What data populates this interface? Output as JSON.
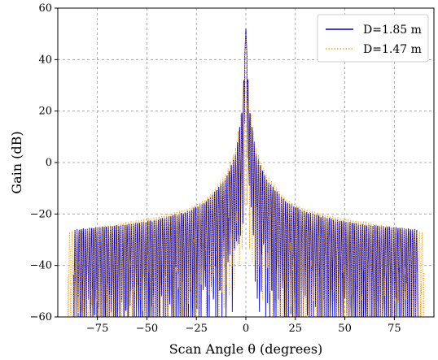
{
  "chart_data": {
    "type": "line",
    "title": "",
    "xlabel": "Scan Angle θ (degrees)",
    "ylabel": "Gain (dB)",
    "xlim": [
      -95,
      95
    ],
    "ylim": [
      -60,
      60
    ],
    "xticks": [
      -75,
      -50,
      -25,
      0,
      25,
      50,
      75
    ],
    "yticks": [
      -60,
      -40,
      -20,
      0,
      20,
      40,
      60
    ],
    "grid": true,
    "legend_position": "top-right",
    "series": [
      {
        "name": "D=1.85 m",
        "color": "#0000cc",
        "style": "solid",
        "x_range": [
          -87,
          87
        ],
        "peak_gain": 52,
        "edge_gain": -26,
        "floor_gain": -60,
        "envelope": {
          "x": [
            -87,
            -75,
            -60,
            -45,
            -30,
            -20,
            -10,
            -5,
            -2,
            -1,
            0,
            1,
            2,
            5,
            10,
            20,
            30,
            45,
            60,
            75,
            87
          ],
          "y": [
            -26,
            -25,
            -24,
            -22,
            -19,
            -15,
            -6,
            4,
            20,
            33,
            52,
            33,
            20,
            4,
            -6,
            -15,
            -19,
            -22,
            -24,
            -25,
            -26
          ]
        }
      },
      {
        "name": "D=1.47 m",
        "color": "#f5a30a",
        "style": "dotted",
        "x_range": [
          -90,
          90
        ],
        "peak_gain": 50,
        "edge_gain": -27,
        "floor_gain": -60,
        "envelope": {
          "x": [
            -90,
            -75,
            -60,
            -45,
            -30,
            -20,
            -10,
            -5,
            -2,
            -1,
            0,
            1,
            2,
            5,
            10,
            20,
            30,
            45,
            60,
            75,
            90
          ],
          "y": [
            -27,
            -25,
            -23,
            -21,
            -18,
            -14,
            -4,
            6,
            22,
            34,
            50,
            34,
            22,
            6,
            -4,
            -14,
            -18,
            -21,
            -23,
            -25,
            -27
          ]
        }
      }
    ]
  }
}
